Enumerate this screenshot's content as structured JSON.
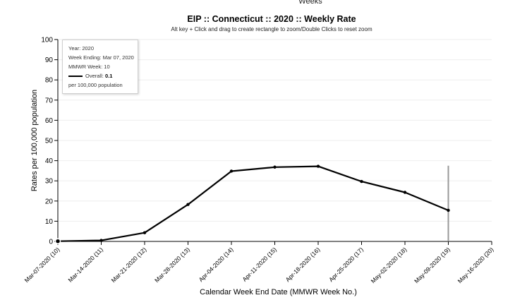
{
  "header": {
    "top_label": "Weeks"
  },
  "tooltip": {
    "year": "Year: 2020",
    "week_ending": "Week Ending: Mar 07, 2020",
    "mmwr_week": "MMWR Week: 10",
    "series_label": "Overall:",
    "series_value": "0.1",
    "unit": "per 100,000 population"
  },
  "chart_data": {
    "type": "line",
    "title": "EIP :: Connecticut :: 2020 :: Weekly Rate",
    "subtitle": "Alt key + Click and drag to create rectangle to zoom/Double Clicks to reset zoom",
    "xlabel": "Calendar Week End Date (MMWR Week No.)",
    "ylabel": "Rates per 100,000 population",
    "ylim": [
      0,
      100
    ],
    "yticks": [
      0,
      10,
      20,
      30,
      40,
      50,
      60,
      70,
      80,
      90,
      100
    ],
    "categories": [
      "Mar-07-2020 (10)",
      "Mar-14-2020 (11)",
      "Mar-21-2020 (12)",
      "Mar-28-2020 (13)",
      "Apr-04-2020 (14)",
      "Apr-11-2020 (15)",
      "Apr-18-2020 (16)",
      "Apr-25-2020 (17)",
      "May-02-2020 (18)",
      "May-09-2020 (19)",
      "May-16-2020 (20)"
    ],
    "series": [
      {
        "name": "Overall",
        "values": [
          0.1,
          0.5,
          4.3,
          18.3,
          34.8,
          36.8,
          37.2,
          29.7,
          24.3,
          15.4,
          null
        ]
      }
    ],
    "grid": true,
    "line_color": "#000000",
    "marker_line_color": "#999999",
    "marker_line_value": 37.5
  }
}
